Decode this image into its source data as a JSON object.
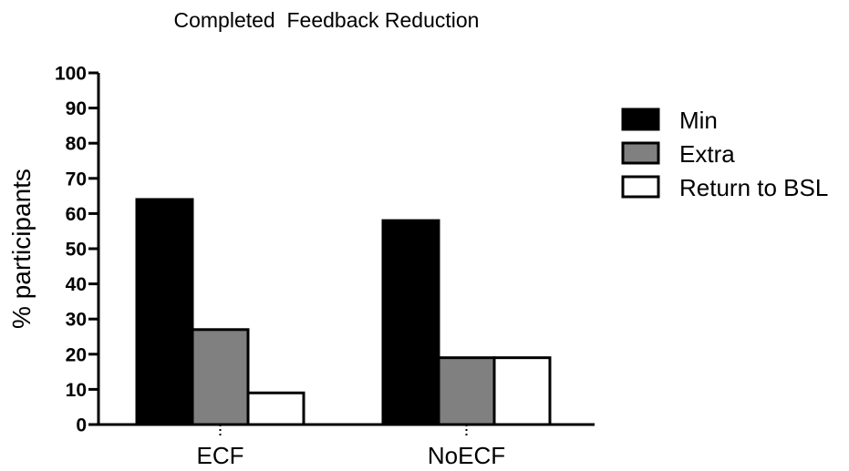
{
  "chart_data": {
    "type": "bar",
    "title": "Completed  Feedback Reduction",
    "xlabel": "",
    "ylabel": "% participants",
    "ylim": [
      0,
      100
    ],
    "yticks": [
      0,
      10,
      20,
      30,
      40,
      50,
      60,
      70,
      80,
      90,
      100
    ],
    "categories": [
      "ECF",
      "NoECF"
    ],
    "series": [
      {
        "name": "Min",
        "color": "#000000",
        "values": [
          64,
          58
        ]
      },
      {
        "name": "Extra",
        "color": "#808080",
        "values": [
          27,
          19
        ]
      },
      {
        "name": "Return to BSL",
        "color": "#ffffff",
        "values": [
          9,
          19
        ]
      }
    ],
    "legend": "right",
    "grid": false
  }
}
